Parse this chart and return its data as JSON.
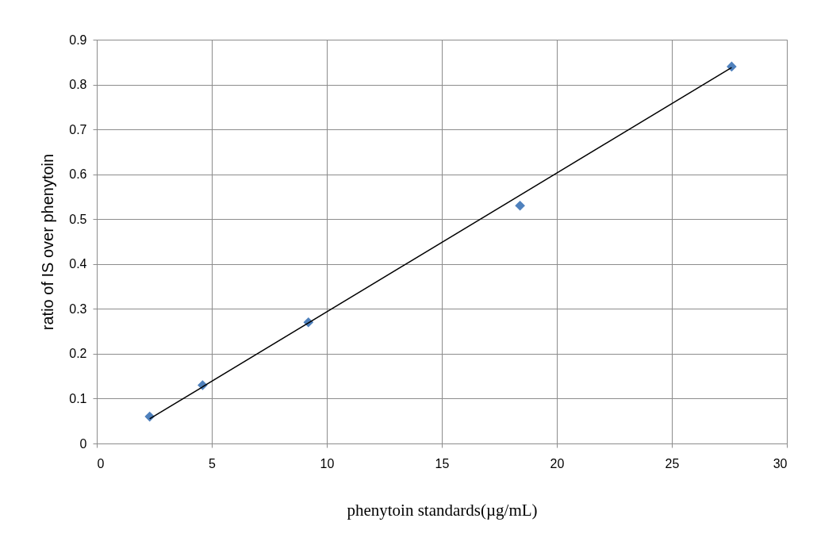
{
  "chart_data": {
    "type": "scatter",
    "xlabel": "phenytoin standards(µg/mL)",
    "ylabel": "ratio of IS over phenytoin",
    "xlim": [
      0,
      30
    ],
    "xticks": [
      0,
      5,
      10,
      15,
      20,
      25,
      30
    ],
    "ylim": [
      0,
      0.9
    ],
    "yticks": [
      0,
      0.1,
      0.2,
      0.3,
      0.4,
      0.5,
      0.6,
      0.7,
      0.8,
      0.9
    ],
    "grid": true,
    "series": [
      {
        "color": "#4f81bd",
        "marker": "diamond",
        "x": [
          2.3,
          4.6,
          9.2,
          18.4,
          27.6
        ],
        "values": [
          0.06,
          0.13,
          0.27,
          0.53,
          0.84
        ]
      },
      {
        "type": "line",
        "color": "#000000",
        "x": [
          2.3,
          27.6
        ],
        "values": [
          0.055,
          0.838
        ]
      }
    ]
  }
}
